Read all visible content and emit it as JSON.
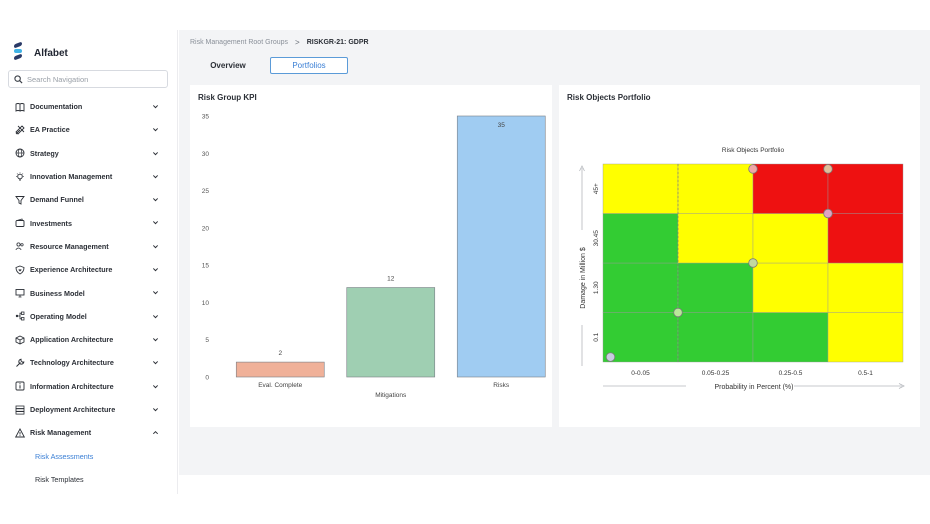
{
  "app": {
    "brand": "Alfabet"
  },
  "search": {
    "placeholder": "Search Navigation"
  },
  "nav": {
    "items": [
      {
        "label": "Documentation",
        "icon": "book-icon"
      },
      {
        "label": "EA Practice",
        "icon": "tools-icon"
      },
      {
        "label": "Strategy",
        "icon": "globe-icon"
      },
      {
        "label": "Innovation Management",
        "icon": "bulb-icon"
      },
      {
        "label": "Demand Funnel",
        "icon": "funnel-icon"
      },
      {
        "label": "Investments",
        "icon": "wallet-icon"
      },
      {
        "label": "Resource Management",
        "icon": "people-icon"
      },
      {
        "label": "Experience Architecture",
        "icon": "heart-shield-icon"
      },
      {
        "label": "Business Model",
        "icon": "presentation-icon"
      },
      {
        "label": "Operating Model",
        "icon": "flow-icon"
      },
      {
        "label": "Application Architecture",
        "icon": "cube-icon"
      },
      {
        "label": "Technology Architecture",
        "icon": "wrench-icon"
      },
      {
        "label": "Information Architecture",
        "icon": "info-icon"
      },
      {
        "label": "Deployment Architecture",
        "icon": "server-icon"
      },
      {
        "label": "Risk Management",
        "icon": "warning-icon"
      }
    ],
    "sub_items": [
      {
        "label": "Risk Assessments",
        "active": true
      },
      {
        "label": "Risk Templates",
        "active": false
      }
    ]
  },
  "breadcrumb": {
    "root": "Risk Management Root Groups",
    "separator": ">",
    "current": "RISKGR-21: GDPR"
  },
  "tabs": {
    "overview": "Overview",
    "portfolios": "Portfolios"
  },
  "kpi_card": {
    "title": "Risk Group KPI"
  },
  "portfolio_card": {
    "title": "Risk Objects Portfolio"
  },
  "chart_data": [
    {
      "type": "bar",
      "categories": [
        "Eval. Complete",
        "Mitigations",
        "Risks"
      ],
      "values": [
        2,
        12,
        35
      ],
      "colors": [
        "#f0b199",
        "#9fcfb2",
        "#a0ccf2"
      ],
      "ylim": [
        0,
        35
      ],
      "yticks": [
        0,
        5,
        10,
        15,
        20,
        25,
        30,
        35
      ]
    },
    {
      "type": "heatmap",
      "title": "Risk Objects Portfolio",
      "xlabel": "Probability in Percent (%)",
      "ylabel": "Damage in Million $",
      "x_categories": [
        "0-0.05",
        "0.05-0.25",
        "0.25-0.5",
        "0.5-1"
      ],
      "y_categories": [
        "0.1",
        "1.30",
        "30.45",
        "45+"
      ],
      "cells": [
        [
          "green",
          "green",
          "green",
          "yellow"
        ],
        [
          "green",
          "green",
          "yellow",
          "yellow"
        ],
        [
          "green",
          "yellow",
          "yellow",
          "red"
        ],
        [
          "yellow",
          "yellow",
          "red",
          "red"
        ]
      ],
      "colors": {
        "green": "#33cc33",
        "yellow": "#ffff00",
        "red": "#ee1111"
      },
      "points": [
        {
          "x": 0.1,
          "y": 0.1,
          "color": "#c8cce0"
        },
        {
          "x": 1.0,
          "y": 1.0,
          "color": "#b8e89a"
        },
        {
          "x": 2.0,
          "y": 2.0,
          "color": "#c2d8a0"
        },
        {
          "x": 3.0,
          "y": 3.0,
          "color": "#dfa3c4"
        },
        {
          "x": 2.0,
          "y": 3.9,
          "color": "#f0a6a6"
        },
        {
          "x": 3.0,
          "y": 3.9,
          "color": "#e2be9a"
        }
      ]
    }
  ]
}
